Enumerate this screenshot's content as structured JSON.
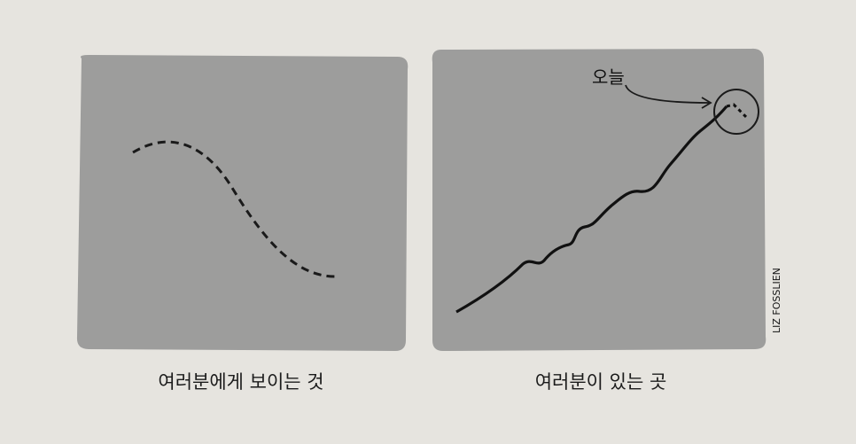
{
  "panels": [
    {
      "caption": "여러분에게 보이는 것"
    },
    {
      "caption": "여러분이 있는 곳",
      "annotation": "오늘"
    }
  ],
  "credit": "LIZ FOSSLIEN"
}
